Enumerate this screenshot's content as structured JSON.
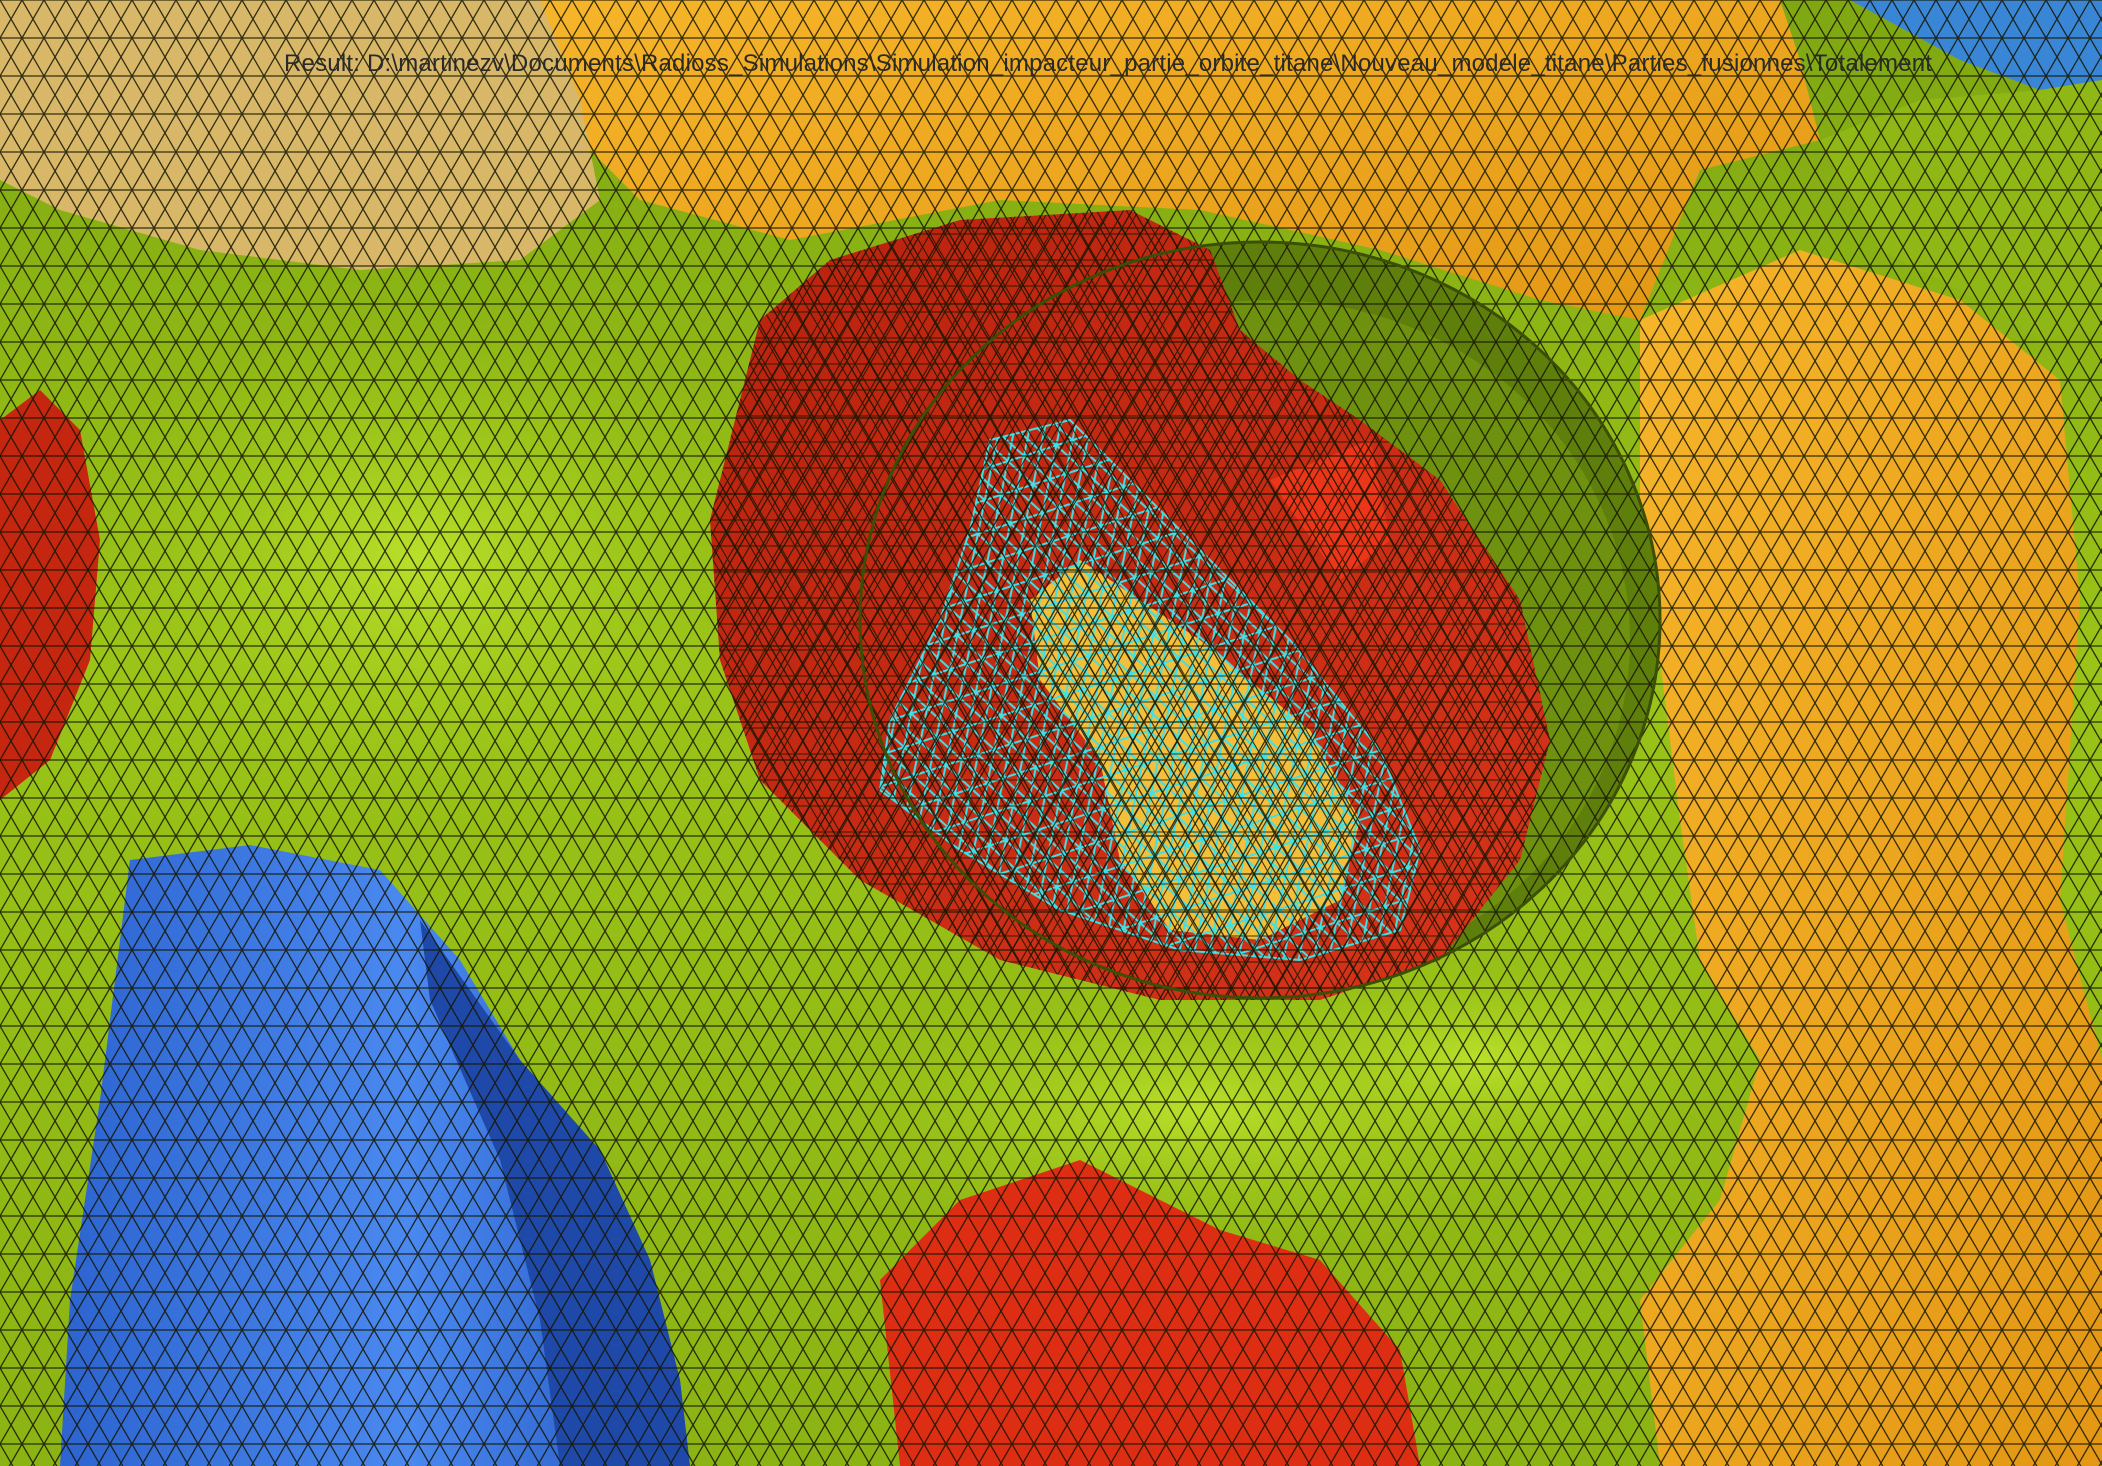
{
  "result_path": "Result: D:\\martinezv\\Documents\\Radioss_Simulations\\Simulation_impacteur_partie_orbite_titane\\Nouveau_modele_titane\\Parties_fusionnes\\Totalement",
  "colors": {
    "background": "#ffffff",
    "green": "#8db414",
    "green_light": "#a6cd1c",
    "green_dark": "#5e7d0a",
    "orange": "#e9a01c",
    "orange_light": "#f5b52a",
    "tan": "#d9b86a",
    "red": "#c42a12",
    "red_bright": "#ee3418",
    "blue": "#2f6fde",
    "blue_light": "#4b8af2",
    "blue_dark": "#1f49a8",
    "implant_yellow": "#f4c03c",
    "implant_mesh": "#3fe0e6",
    "mesh_edges": "#1a1a00"
  }
}
